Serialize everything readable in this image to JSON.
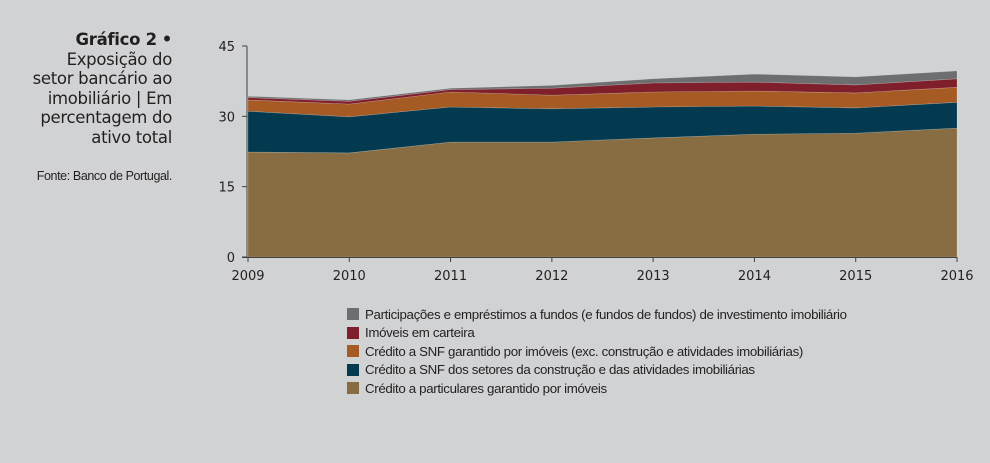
{
  "caption": {
    "label": "Gráfico 2",
    "bullet": "•",
    "title_lines": [
      "Exposição do",
      "setor bancário ao",
      "imobiliário | Em",
      "percentagem do",
      "ativo total"
    ],
    "source": "Fonte: Banco de Portugal."
  },
  "chart_data": {
    "type": "area",
    "stacked": true,
    "title": "Exposição do setor bancário ao imobiliário | Em percentagem do ativo total",
    "xlabel": "",
    "ylabel": "",
    "x": [
      "2009",
      "2010",
      "2011",
      "2012",
      "2013",
      "2014",
      "2015",
      "2016"
    ],
    "ylim": [
      0,
      45
    ],
    "yticks": [
      0,
      15,
      30,
      45
    ],
    "grid": false,
    "legend_position": "bottom",
    "series": [
      {
        "name": "Crédito a particulares garantido por imóveis",
        "color": "#886d43",
        "values": [
          22.4,
          22.2,
          24.5,
          24.5,
          25.4,
          26.2,
          26.4,
          27.5
        ]
      },
      {
        "name": "Crédito a SNF dos setores da construção e das atividades imobiliárias",
        "color": "#033a4f",
        "values": [
          8.7,
          7.7,
          7.5,
          7.1,
          6.6,
          6.0,
          5.4,
          5.5
        ]
      },
      {
        "name": "Crédito a SNF garantido por imóveis (exc. construção e atividades imobiliárias)",
        "color": "#a65a24",
        "values": [
          2.4,
          2.7,
          3.2,
          2.9,
          3.2,
          3.2,
          3.2,
          3.2
        ]
      },
      {
        "name": "Imóveis em carteira",
        "color": "#7e1f2b",
        "values": [
          0.5,
          0.6,
          0.5,
          1.5,
          1.9,
          1.9,
          1.7,
          1.8
        ]
      },
      {
        "name": "Participações e empréstimos a fundos (e fundos de fundos) de investimento imobiliário",
        "color": "#6d6e70",
        "values": [
          0.3,
          0.3,
          0.3,
          0.6,
          0.9,
          1.7,
          1.7,
          1.7
        ]
      }
    ],
    "legend_order": [
      4,
      3,
      2,
      1,
      0
    ]
  }
}
